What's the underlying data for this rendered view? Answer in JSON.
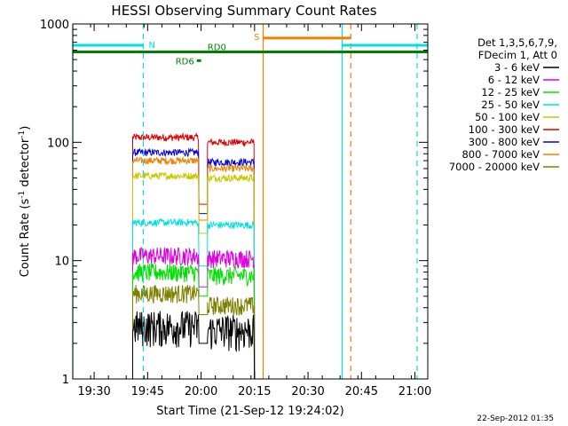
{
  "chart_data": {
    "type": "line",
    "title": "HESSI Observing Summary Count Rates",
    "xlabel": "Start Time (21-Sep-12 19:24:02)",
    "ylabel_main": "Count Rate (s",
    "ylabel_sup1": "-1",
    "ylabel_mid": " detector",
    "ylabel_sup2": "-1",
    "ylabel_end": ")",
    "yscale": "log",
    "ylim": [
      1,
      1000
    ],
    "xlim_minutes": [
      19.4,
      21.06
    ],
    "x_ticks": [
      {
        "label": "19:30",
        "minutes": 19.5
      },
      {
        "label": "19:45",
        "minutes": 19.75
      },
      {
        "label": "20:00",
        "minutes": 20.0
      },
      {
        "label": "20:15",
        "minutes": 20.25
      },
      {
        "label": "20:30",
        "minutes": 20.5
      },
      {
        "label": "20:45",
        "minutes": 20.75
      },
      {
        "label": "21:00",
        "minutes": 21.0
      }
    ],
    "y_ticks": [
      {
        "label": "1",
        "value": 1
      },
      {
        "label": "10",
        "value": 10
      },
      {
        "label": "100",
        "value": 100
      },
      {
        "label": "1000",
        "value": 1000
      }
    ],
    "legend": {
      "placement": "right",
      "header": [
        "Det 1,3,5,6,7,9,",
        "FDecim 1, Att 0"
      ],
      "entries": [
        {
          "label": "3 - 6 keV",
          "color": "#000000"
        },
        {
          "label": "6 - 12 keV",
          "color": "#e000e0"
        },
        {
          "label": "12 - 25 keV",
          "color": "#00e000"
        },
        {
          "label": "25 - 50 keV",
          "color": "#00e0e0"
        },
        {
          "label": "50 - 100 keV",
          "color": "#c8c800"
        },
        {
          "label": "100 - 300 keV",
          "color": "#e00000"
        },
        {
          "label": "300 - 800 keV",
          "color": "#0000e0"
        },
        {
          "label": "800 - 7000 keV",
          "color": "#f08000"
        },
        {
          "label": "7000 - 20000 keV",
          "color": "#808000"
        }
      ]
    },
    "series": [
      {
        "color": "#e00000",
        "segments": [
          [
            19.68,
            19.99,
            110
          ],
          [
            20.03,
            20.25,
            100
          ]
        ],
        "dip": [
          19.99,
          20.03,
          30
        ]
      },
      {
        "color": "#0000e0",
        "segments": [
          [
            19.68,
            19.99,
            82
          ],
          [
            20.03,
            20.25,
            68
          ]
        ],
        "dip": [
          19.99,
          20.03,
          25
        ]
      },
      {
        "color": "#f08000",
        "segments": [
          [
            19.68,
            19.99,
            70
          ],
          [
            20.03,
            20.25,
            60
          ]
        ],
        "dip": [
          19.99,
          20.03,
          22
        ]
      },
      {
        "color": "#c8c800",
        "segments": [
          [
            19.68,
            19.99,
            52
          ],
          [
            20.03,
            20.25,
            50
          ]
        ],
        "dip": [
          19.99,
          20.03,
          17
        ]
      },
      {
        "color": "#00e0e0",
        "segments": [
          [
            19.68,
            19.99,
            21
          ],
          [
            20.03,
            20.25,
            20
          ]
        ],
        "dip": [
          19.99,
          20.03,
          9
        ]
      },
      {
        "color": "#e000e0",
        "segments": [
          [
            19.68,
            19.99,
            11
          ],
          [
            20.03,
            20.25,
            10.5
          ]
        ],
        "dip": [
          19.99,
          20.03,
          6
        ]
      },
      {
        "color": "#00e000",
        "segments": [
          [
            19.68,
            19.99,
            8
          ],
          [
            20.03,
            20.25,
            7.5
          ]
        ],
        "dip": [
          19.99,
          20.03,
          5
        ]
      },
      {
        "color": "#808000",
        "segments": [
          [
            19.68,
            19.99,
            5.3
          ],
          [
            20.03,
            20.25,
            4.2
          ]
        ],
        "dip": [
          19.99,
          20.03,
          3.5
        ]
      },
      {
        "color": "#000000",
        "segments": [
          [
            19.68,
            19.99,
            2.8
          ],
          [
            20.03,
            20.25,
            2.6
          ]
        ],
        "dip": [
          19.99,
          20.03,
          2
        ]
      }
    ],
    "flags": [
      {
        "label": "N",
        "color": "#00e0e0",
        "segments": [
          [
            19.4,
            19.73
          ],
          [
            20.66,
            21.06
          ]
        ],
        "value": 660
      },
      {
        "label": "S",
        "color": "#f08000",
        "segments": [
          [
            20.29,
            20.7
          ]
        ],
        "value": 760
      },
      {
        "label": "RD0",
        "color": "#008000",
        "segments": [
          [
            19.4,
            21.06
          ]
        ],
        "value": 580
      },
      {
        "label": "RD6",
        "color": "#008000",
        "segments": [
          [
            19.98,
            20.0
          ]
        ],
        "value": 490
      }
    ],
    "solid_vlines": [
      {
        "color": "#00e0e0",
        "minutes": 19.4
      },
      {
        "color": "#00e0e0",
        "minutes": 20.66
      },
      {
        "color": "#f08000",
        "minutes": 20.29
      }
    ],
    "dashed_vlines": [
      {
        "color": "#00e0e0",
        "minutes": 19.73
      },
      {
        "color": "#00e0e0",
        "minutes": 21.01
      },
      {
        "color": "#f08000",
        "minutes": 20.7
      }
    ],
    "grid": false
  },
  "footer": {
    "timestamp": "22-Sep-2012 01:35"
  }
}
